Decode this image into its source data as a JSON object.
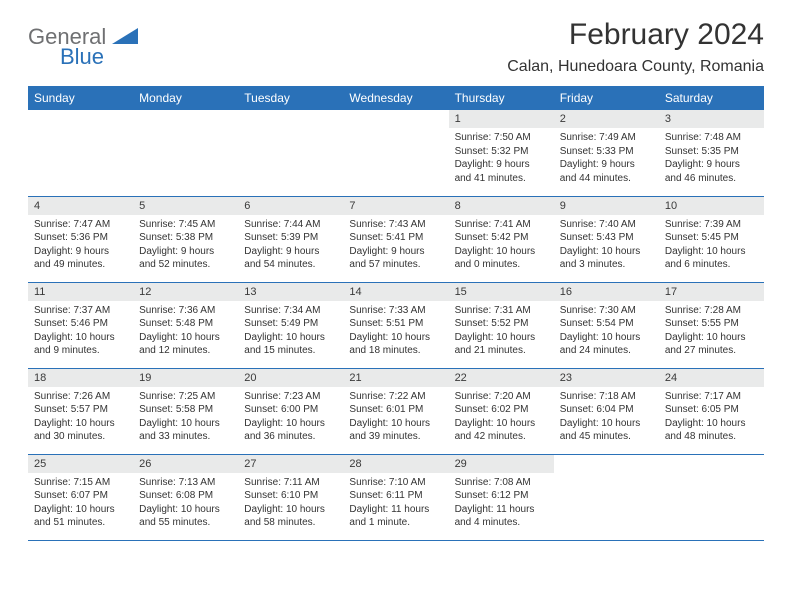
{
  "logo": {
    "general": "General",
    "blue": "Blue"
  },
  "title": "February 2024",
  "location": "Calan, Hunedoara County, Romania",
  "colors": {
    "header_bg": "#2a71b8",
    "header_text": "#ffffff",
    "day_head_bg": "#e9eaea",
    "border": "#2a71b8",
    "body_text": "#333333",
    "logo_gray": "#6f7072",
    "logo_blue": "#2a71b8"
  },
  "day_labels": [
    "Sunday",
    "Monday",
    "Tuesday",
    "Wednesday",
    "Thursday",
    "Friday",
    "Saturday"
  ],
  "weeks": [
    [
      null,
      null,
      null,
      null,
      {
        "num": "1",
        "sunrise": "Sunrise: 7:50 AM",
        "sunset": "Sunset: 5:32 PM",
        "daylight": "Daylight: 9 hours and 41 minutes."
      },
      {
        "num": "2",
        "sunrise": "Sunrise: 7:49 AM",
        "sunset": "Sunset: 5:33 PM",
        "daylight": "Daylight: 9 hours and 44 minutes."
      },
      {
        "num": "3",
        "sunrise": "Sunrise: 7:48 AM",
        "sunset": "Sunset: 5:35 PM",
        "daylight": "Daylight: 9 hours and 46 minutes."
      }
    ],
    [
      {
        "num": "4",
        "sunrise": "Sunrise: 7:47 AM",
        "sunset": "Sunset: 5:36 PM",
        "daylight": "Daylight: 9 hours and 49 minutes."
      },
      {
        "num": "5",
        "sunrise": "Sunrise: 7:45 AM",
        "sunset": "Sunset: 5:38 PM",
        "daylight": "Daylight: 9 hours and 52 minutes."
      },
      {
        "num": "6",
        "sunrise": "Sunrise: 7:44 AM",
        "sunset": "Sunset: 5:39 PM",
        "daylight": "Daylight: 9 hours and 54 minutes."
      },
      {
        "num": "7",
        "sunrise": "Sunrise: 7:43 AM",
        "sunset": "Sunset: 5:41 PM",
        "daylight": "Daylight: 9 hours and 57 minutes."
      },
      {
        "num": "8",
        "sunrise": "Sunrise: 7:41 AM",
        "sunset": "Sunset: 5:42 PM",
        "daylight": "Daylight: 10 hours and 0 minutes."
      },
      {
        "num": "9",
        "sunrise": "Sunrise: 7:40 AM",
        "sunset": "Sunset: 5:43 PM",
        "daylight": "Daylight: 10 hours and 3 minutes."
      },
      {
        "num": "10",
        "sunrise": "Sunrise: 7:39 AM",
        "sunset": "Sunset: 5:45 PM",
        "daylight": "Daylight: 10 hours and 6 minutes."
      }
    ],
    [
      {
        "num": "11",
        "sunrise": "Sunrise: 7:37 AM",
        "sunset": "Sunset: 5:46 PM",
        "daylight": "Daylight: 10 hours and 9 minutes."
      },
      {
        "num": "12",
        "sunrise": "Sunrise: 7:36 AM",
        "sunset": "Sunset: 5:48 PM",
        "daylight": "Daylight: 10 hours and 12 minutes."
      },
      {
        "num": "13",
        "sunrise": "Sunrise: 7:34 AM",
        "sunset": "Sunset: 5:49 PM",
        "daylight": "Daylight: 10 hours and 15 minutes."
      },
      {
        "num": "14",
        "sunrise": "Sunrise: 7:33 AM",
        "sunset": "Sunset: 5:51 PM",
        "daylight": "Daylight: 10 hours and 18 minutes."
      },
      {
        "num": "15",
        "sunrise": "Sunrise: 7:31 AM",
        "sunset": "Sunset: 5:52 PM",
        "daylight": "Daylight: 10 hours and 21 minutes."
      },
      {
        "num": "16",
        "sunrise": "Sunrise: 7:30 AM",
        "sunset": "Sunset: 5:54 PM",
        "daylight": "Daylight: 10 hours and 24 minutes."
      },
      {
        "num": "17",
        "sunrise": "Sunrise: 7:28 AM",
        "sunset": "Sunset: 5:55 PM",
        "daylight": "Daylight: 10 hours and 27 minutes."
      }
    ],
    [
      {
        "num": "18",
        "sunrise": "Sunrise: 7:26 AM",
        "sunset": "Sunset: 5:57 PM",
        "daylight": "Daylight: 10 hours and 30 minutes."
      },
      {
        "num": "19",
        "sunrise": "Sunrise: 7:25 AM",
        "sunset": "Sunset: 5:58 PM",
        "daylight": "Daylight: 10 hours and 33 minutes."
      },
      {
        "num": "20",
        "sunrise": "Sunrise: 7:23 AM",
        "sunset": "Sunset: 6:00 PM",
        "daylight": "Daylight: 10 hours and 36 minutes."
      },
      {
        "num": "21",
        "sunrise": "Sunrise: 7:22 AM",
        "sunset": "Sunset: 6:01 PM",
        "daylight": "Daylight: 10 hours and 39 minutes."
      },
      {
        "num": "22",
        "sunrise": "Sunrise: 7:20 AM",
        "sunset": "Sunset: 6:02 PM",
        "daylight": "Daylight: 10 hours and 42 minutes."
      },
      {
        "num": "23",
        "sunrise": "Sunrise: 7:18 AM",
        "sunset": "Sunset: 6:04 PM",
        "daylight": "Daylight: 10 hours and 45 minutes."
      },
      {
        "num": "24",
        "sunrise": "Sunrise: 7:17 AM",
        "sunset": "Sunset: 6:05 PM",
        "daylight": "Daylight: 10 hours and 48 minutes."
      }
    ],
    [
      {
        "num": "25",
        "sunrise": "Sunrise: 7:15 AM",
        "sunset": "Sunset: 6:07 PM",
        "daylight": "Daylight: 10 hours and 51 minutes."
      },
      {
        "num": "26",
        "sunrise": "Sunrise: 7:13 AM",
        "sunset": "Sunset: 6:08 PM",
        "daylight": "Daylight: 10 hours and 55 minutes."
      },
      {
        "num": "27",
        "sunrise": "Sunrise: 7:11 AM",
        "sunset": "Sunset: 6:10 PM",
        "daylight": "Daylight: 10 hours and 58 minutes."
      },
      {
        "num": "28",
        "sunrise": "Sunrise: 7:10 AM",
        "sunset": "Sunset: 6:11 PM",
        "daylight": "Daylight: 11 hours and 1 minute."
      },
      {
        "num": "29",
        "sunrise": "Sunrise: 7:08 AM",
        "sunset": "Sunset: 6:12 PM",
        "daylight": "Daylight: 11 hours and 4 minutes."
      },
      null,
      null
    ]
  ]
}
